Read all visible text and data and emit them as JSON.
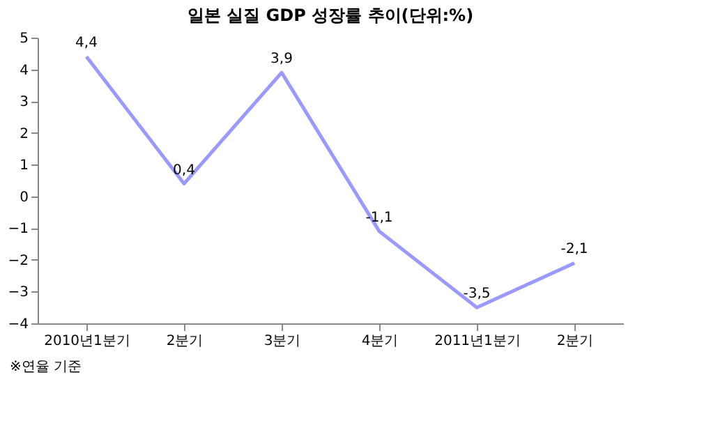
{
  "chart_data": {
    "type": "line",
    "title": "일본 실질 GDP 성장률 추이(단위:%)",
    "categories": [
      "2010년1분기",
      "2분기",
      "3분기",
      "4분기",
      "2011년1분기",
      "2분기"
    ],
    "series": [
      {
        "color": "#9999ff",
        "values": [
          4.4,
          0.4,
          3.9,
          -1.1,
          -3.5,
          -2.1
        ],
        "value_labels": [
          "4,4",
          "0,4",
          "3,9",
          "-1,1",
          "-3,5",
          "-2,1"
        ]
      }
    ],
    "ylim": [
      -4,
      5
    ],
    "yticks": [
      -4,
      -3,
      -2,
      -1,
      0,
      1,
      2,
      3,
      4,
      5
    ],
    "grid": false,
    "marker": "none",
    "line_style": "solid",
    "annotations": [
      "※연율 기준"
    ]
  }
}
